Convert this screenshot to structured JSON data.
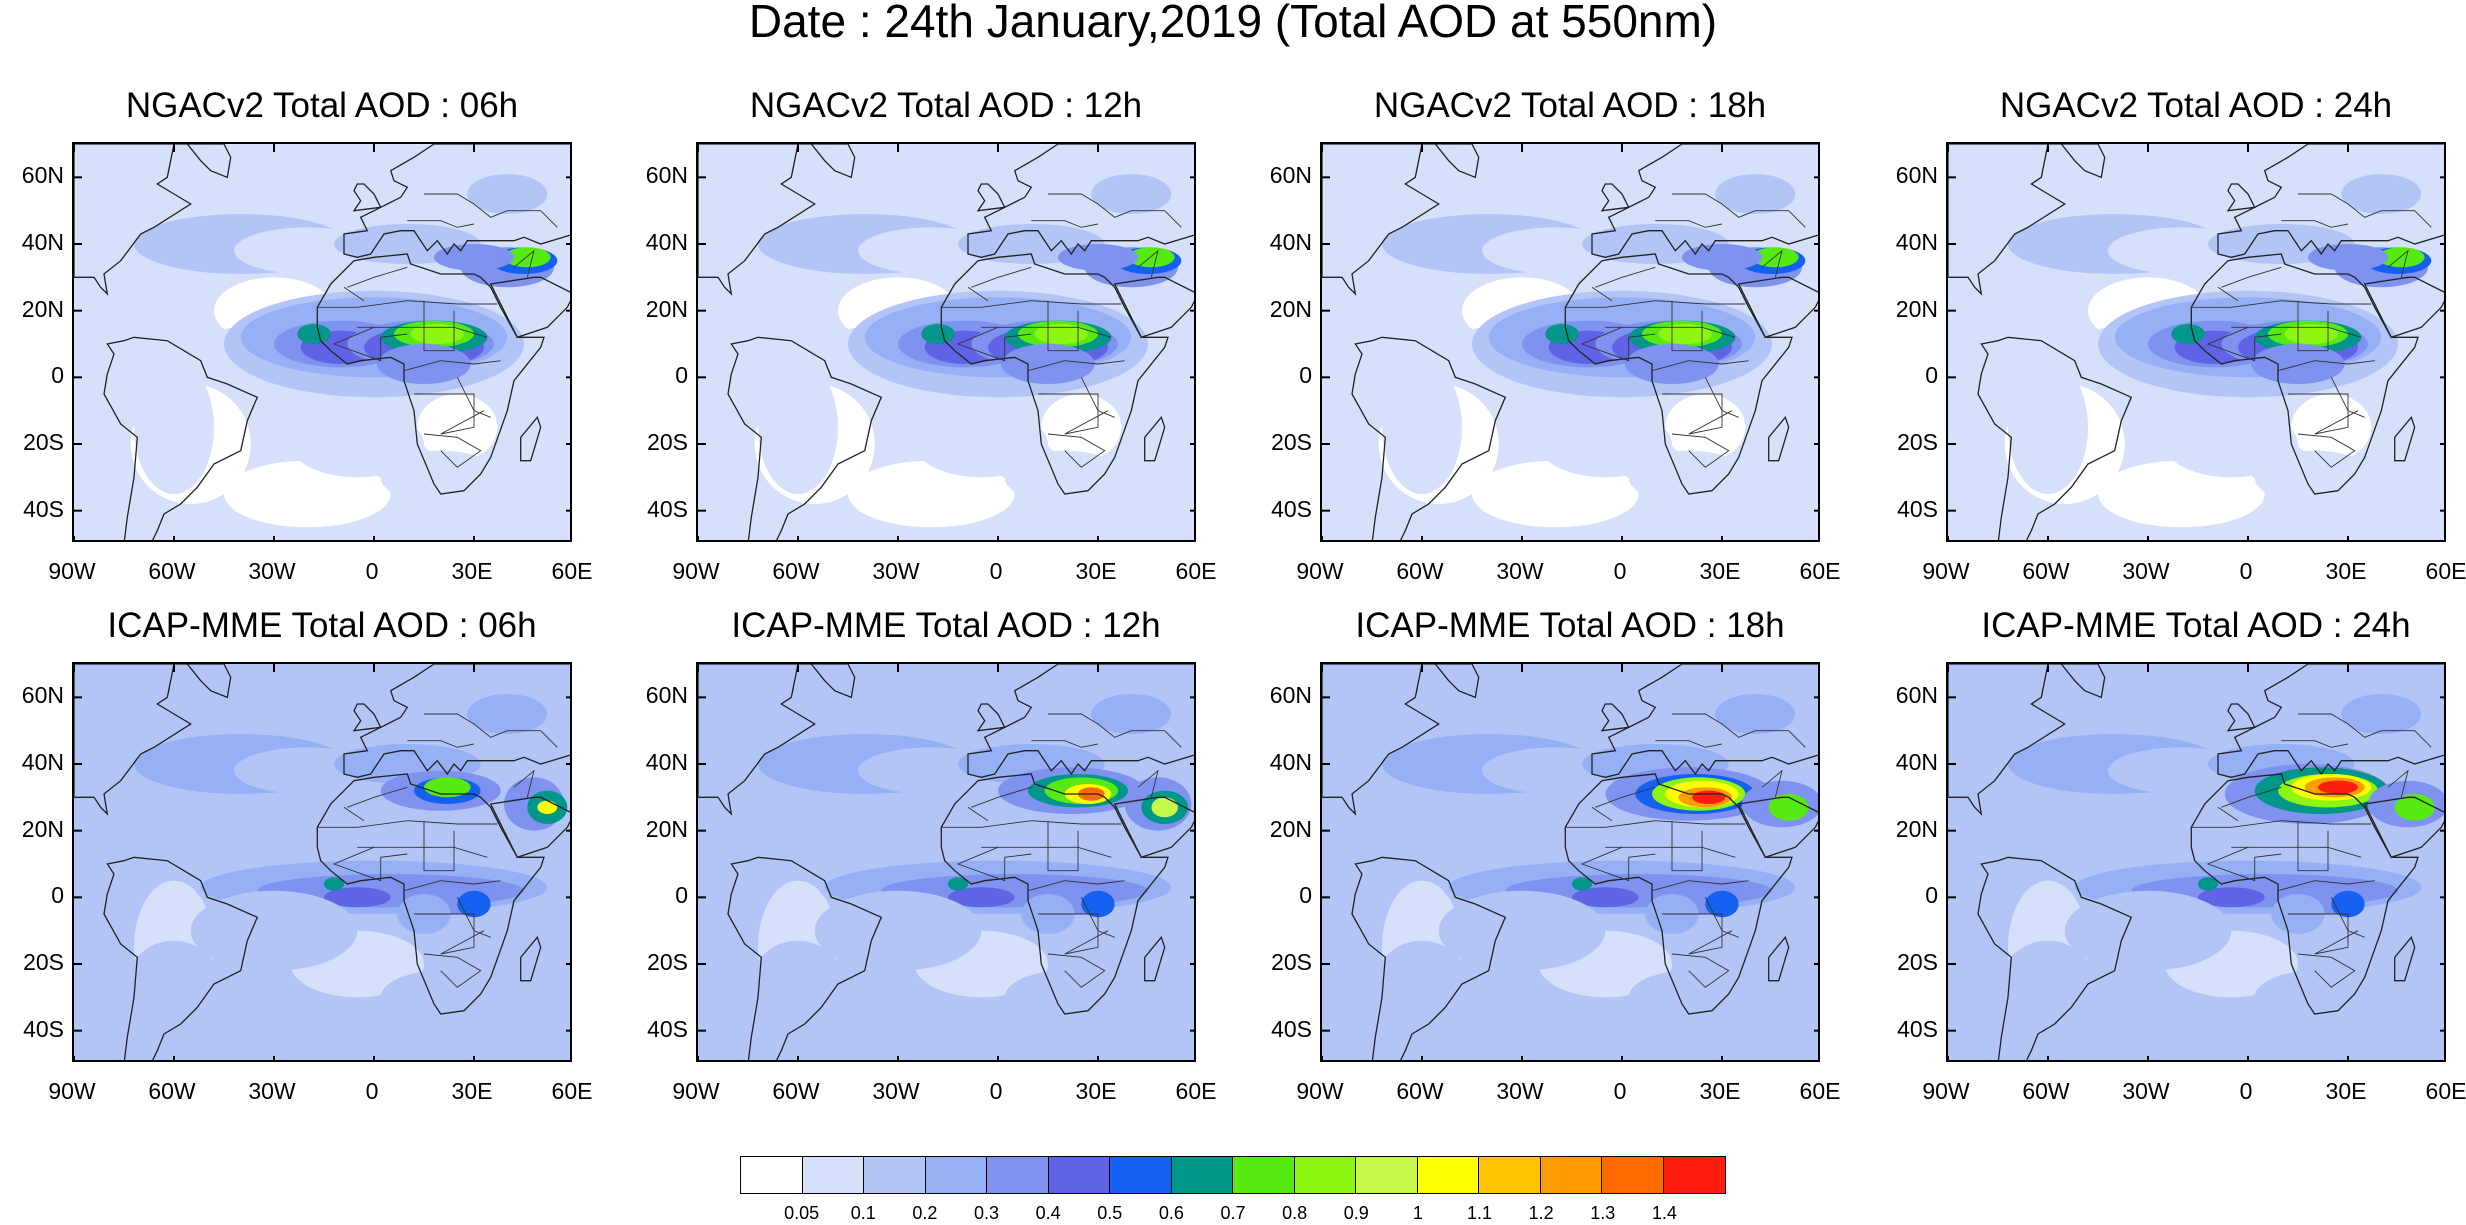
{
  "title": "Date : 24th January,2019 (Total AOD at 550nm)",
  "lat_labels": [
    "60N",
    "40N",
    "20N",
    "0",
    "20S",
    "40S"
  ],
  "lon_labels": [
    "90W",
    "60W",
    "30W",
    "0",
    "30E",
    "60E"
  ],
  "panels": [
    {
      "title": "NGACv2 Total AOD : 06h",
      "model": "NGACv2",
      "hour": "06h",
      "max_level": 0.9
    },
    {
      "title": "NGACv2 Total AOD : 12h",
      "model": "NGACv2",
      "hour": "12h",
      "max_level": 0.9
    },
    {
      "title": "NGACv2 Total AOD : 18h",
      "model": "NGACv2",
      "hour": "18h",
      "max_level": 0.9
    },
    {
      "title": "NGACv2 Total AOD : 24h",
      "model": "NGACv2",
      "hour": "24h",
      "max_level": 0.9
    },
    {
      "title": "ICAP-MME Total AOD : 06h",
      "model": "ICAP-MME",
      "hour": "06h",
      "max_level": 1.0
    },
    {
      "title": "ICAP-MME Total AOD : 12h",
      "model": "ICAP-MME",
      "hour": "12h",
      "max_level": 1.4
    },
    {
      "title": "ICAP-MME Total AOD : 18h",
      "model": "ICAP-MME",
      "hour": "18h",
      "max_level": 1.4
    },
    {
      "title": "ICAP-MME Total AOD : 24h",
      "model": "ICAP-MME",
      "hour": "24h",
      "max_level": 1.4
    }
  ],
  "colorbar": {
    "labels": [
      "0.05",
      "0.1",
      "0.2",
      "0.3",
      "0.4",
      "0.5",
      "0.6",
      "0.7",
      "0.8",
      "0.9",
      "1",
      "1.1",
      "1.2",
      "1.3",
      "1.4"
    ],
    "colors": [
      "#ffffff",
      "#d6e0fb",
      "#b3c5f7",
      "#96b0f5",
      "#7f92ef",
      "#5f63e6",
      "#1560f0",
      "#00968a",
      "#56ea12",
      "#8cf612",
      "#c4f94a",
      "#ffff00",
      "#ffc300",
      "#ff9c00",
      "#ff6a00",
      "#ff1d10"
    ]
  }
}
